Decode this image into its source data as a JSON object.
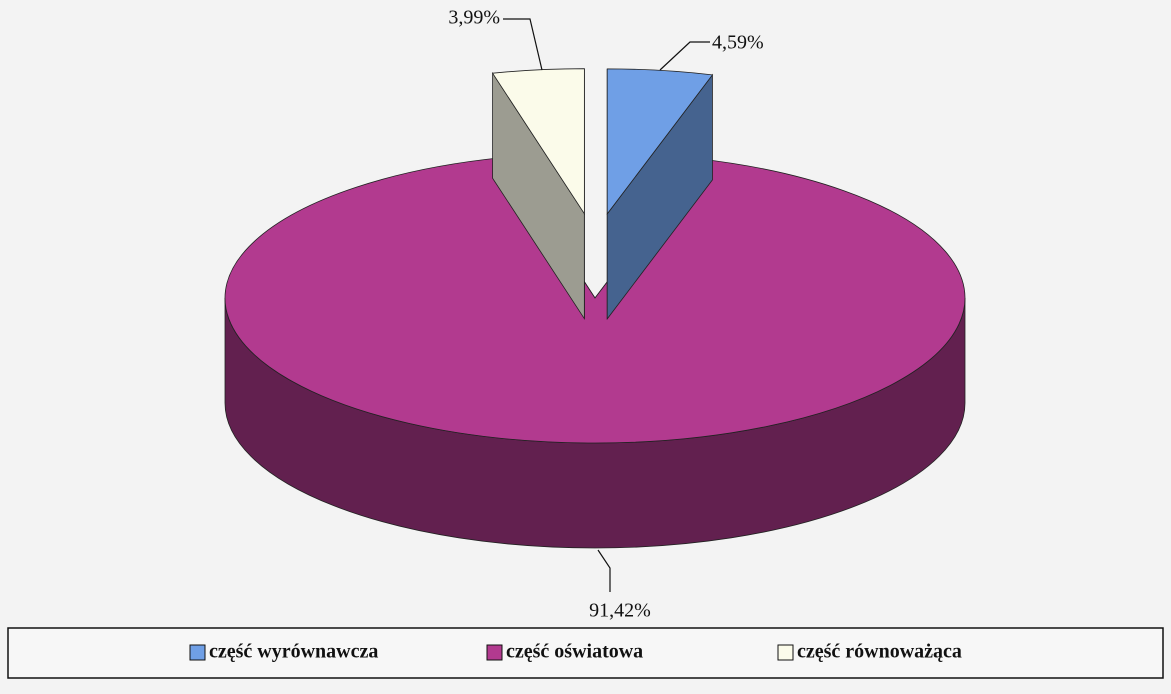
{
  "chart_data": {
    "type": "pie",
    "categories": [
      "część wyrównawcza",
      "część oświatowa",
      "część równoważąca"
    ],
    "values": [
      4.59,
      91.42,
      3.99
    ],
    "value_labels": [
      "4,59%",
      "91,42%",
      "3,99%"
    ],
    "colors": [
      "#6f9fe6",
      "#b23a8f",
      "#fbfbea"
    ],
    "legend": "bottom"
  }
}
